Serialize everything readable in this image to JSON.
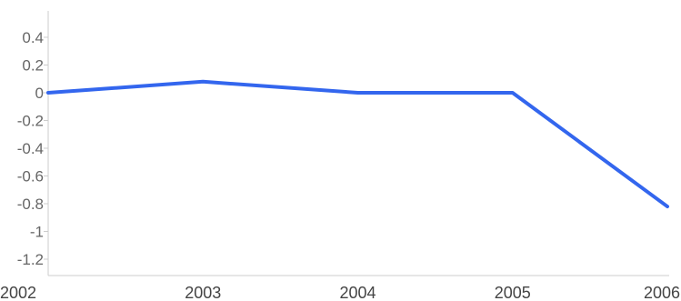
{
  "chart_data": {
    "type": "line",
    "x": [
      "2002",
      "2003",
      "2004",
      "2005",
      "2006"
    ],
    "series": [
      {
        "values": [
          0,
          0.08,
          0,
          0,
          -0.82
        ]
      }
    ],
    "xlabel": "",
    "ylabel": "",
    "ylim": [
      -1.3,
      0.5
    ],
    "yticks": [
      0.4,
      0.2,
      0,
      -0.2,
      -0.4,
      -0.6,
      -0.8,
      -1,
      -1.2
    ],
    "ytick_labels": [
      "0.4",
      "0.2",
      "0",
      "-0.2",
      "-0.4",
      "-0.6",
      "-0.8",
      "-1",
      "-1.2"
    ],
    "grid": false,
    "legend": "none",
    "colors": {
      "series": "#3366ee",
      "axis": "#cccccc",
      "text": "#666666"
    }
  }
}
